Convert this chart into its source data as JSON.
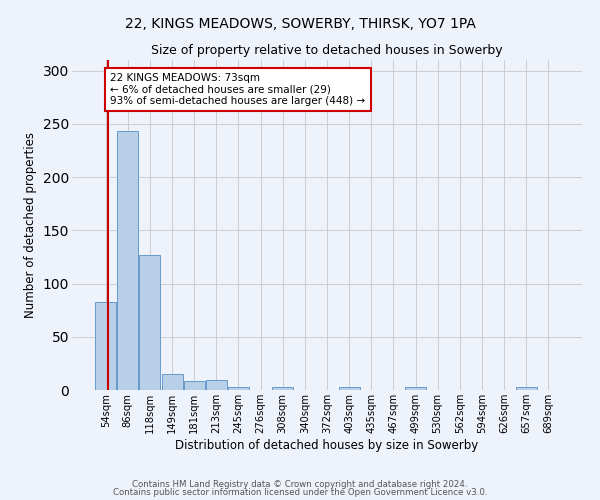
{
  "title1": "22, KINGS MEADOWS, SOWERBY, THIRSK, YO7 1PA",
  "title2": "Size of property relative to detached houses in Sowerby",
  "xlabel": "Distribution of detached houses by size in Sowerby",
  "ylabel": "Number of detached properties",
  "categories": [
    "54sqm",
    "86sqm",
    "118sqm",
    "149sqm",
    "181sqm",
    "213sqm",
    "245sqm",
    "276sqm",
    "308sqm",
    "340sqm",
    "372sqm",
    "403sqm",
    "435sqm",
    "467sqm",
    "499sqm",
    "530sqm",
    "562sqm",
    "594sqm",
    "626sqm",
    "657sqm",
    "689sqm"
  ],
  "values": [
    83,
    243,
    127,
    15,
    8,
    9,
    3,
    0,
    3,
    0,
    0,
    3,
    0,
    0,
    3,
    0,
    0,
    0,
    0,
    3,
    0
  ],
  "bar_color": "#b8cfe8",
  "bar_edge_color": "#6699cc",
  "marker_label_line1": "22 KINGS MEADOWS: 73sqm",
  "marker_label_line2": "← 6% of detached houses are smaller (29)",
  "marker_label_line3": "93% of semi-detached houses are larger (448) →",
  "marker_color": "#cc0000",
  "annotation_box_color": "#ffffff",
  "annotation_box_edge": "#cc0000",
  "ylim": [
    0,
    310
  ],
  "yticks": [
    0,
    50,
    100,
    150,
    200,
    250,
    300
  ],
  "footer1": "Contains HM Land Registry data © Crown copyright and database right 2024.",
  "footer2": "Contains public sector information licensed under the Open Government Licence v3.0.",
  "background_color": "#eef2fb",
  "grid_color": "#c8c8c8"
}
